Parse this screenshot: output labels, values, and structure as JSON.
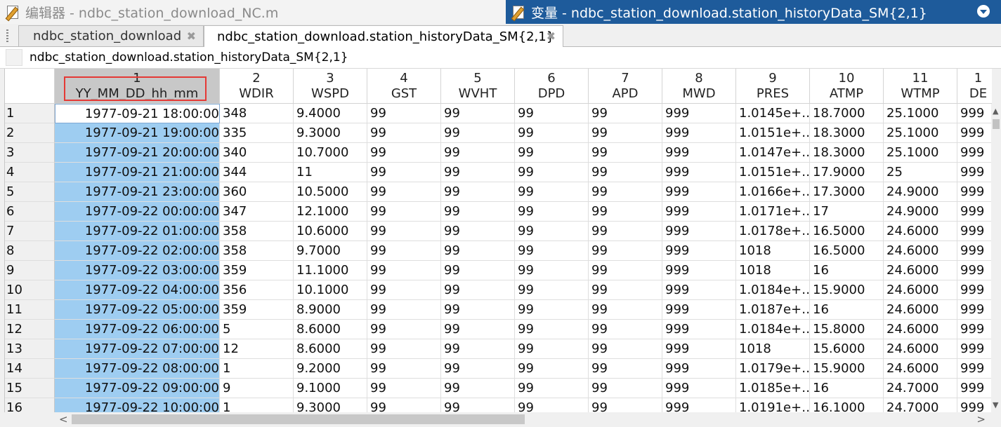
{
  "editor_window": {
    "title": "编辑器 - ndbc_station_download_NC.m"
  },
  "variable_window": {
    "title": "变量 - ndbc_station_download.station_historyData_SM{2,1}"
  },
  "tabs": [
    {
      "label": "ndbc_station_download",
      "close": "✖"
    },
    {
      "label": "ndbc_station_download.station_historyData_SM{2,1}",
      "close": "✖"
    }
  ],
  "path": {
    "text": "ndbc_station_download.station_historyData_SM{2,1}"
  },
  "columns": [
    {
      "num": "1",
      "name": "YY_MM_DD_hh_mm"
    },
    {
      "num": "2",
      "name": "WDIR"
    },
    {
      "num": "3",
      "name": "WSPD"
    },
    {
      "num": "4",
      "name": "GST"
    },
    {
      "num": "5",
      "name": "WVHT"
    },
    {
      "num": "6",
      "name": "DPD"
    },
    {
      "num": "7",
      "name": "APD"
    },
    {
      "num": "8",
      "name": "MWD"
    },
    {
      "num": "9",
      "name": "PRES"
    },
    {
      "num": "10",
      "name": "ATMP"
    },
    {
      "num": "11",
      "name": "WTMP"
    },
    {
      "num": "1",
      "name": "DE"
    }
  ],
  "rows": [
    [
      "1",
      "1977-09-21 18:00:00",
      "348",
      "9.4000",
      "99",
      "99",
      "99",
      "99",
      "999",
      "1.0145e+…",
      "18.7000",
      "25.1000",
      "999"
    ],
    [
      "2",
      "1977-09-21 19:00:00",
      "335",
      "9.3000",
      "99",
      "99",
      "99",
      "99",
      "999",
      "1.0151e+…",
      "18.3000",
      "25.1000",
      "999"
    ],
    [
      "3",
      "1977-09-21 20:00:00",
      "340",
      "10.7000",
      "99",
      "99",
      "99",
      "99",
      "999",
      "1.0147e+…",
      "18.3000",
      "25.1000",
      "999"
    ],
    [
      "4",
      "1977-09-21 21:00:00",
      "344",
      "11",
      "99",
      "99",
      "99",
      "99",
      "999",
      "1.0151e+…",
      "17.9000",
      "25",
      "999"
    ],
    [
      "5",
      "1977-09-21 23:00:00",
      "360",
      "10.5000",
      "99",
      "99",
      "99",
      "99",
      "999",
      "1.0166e+…",
      "17.3000",
      "24.9000",
      "999"
    ],
    [
      "6",
      "1977-09-22 00:00:00",
      "347",
      "12.1000",
      "99",
      "99",
      "99",
      "99",
      "999",
      "1.0171e+…",
      "17",
      "24.9000",
      "999"
    ],
    [
      "7",
      "1977-09-22 01:00:00",
      "358",
      "10.6000",
      "99",
      "99",
      "99",
      "99",
      "999",
      "1.0178e+…",
      "16.5000",
      "24.6000",
      "999"
    ],
    [
      "8",
      "1977-09-22 02:00:00",
      "358",
      "9.7000",
      "99",
      "99",
      "99",
      "99",
      "999",
      "1018",
      "16.5000",
      "24.6000",
      "999"
    ],
    [
      "9",
      "1977-09-22 03:00:00",
      "359",
      "11.1000",
      "99",
      "99",
      "99",
      "99",
      "999",
      "1018",
      "16",
      "24.6000",
      "999"
    ],
    [
      "10",
      "1977-09-22 04:00:00",
      "356",
      "10.1000",
      "99",
      "99",
      "99",
      "99",
      "999",
      "1.0184e+…",
      "15.9000",
      "24.6000",
      "999"
    ],
    [
      "11",
      "1977-09-22 05:00:00",
      "359",
      "8.9000",
      "99",
      "99",
      "99",
      "99",
      "999",
      "1.0187e+…",
      "16",
      "24.6000",
      "999"
    ],
    [
      "12",
      "1977-09-22 06:00:00",
      "5",
      "8.6000",
      "99",
      "99",
      "99",
      "99",
      "999",
      "1.0184e+…",
      "15.8000",
      "24.6000",
      "999"
    ],
    [
      "13",
      "1977-09-22 07:00:00",
      "12",
      "8.6000",
      "99",
      "99",
      "99",
      "99",
      "999",
      "1018",
      "15.6000",
      "24.6000",
      "999"
    ],
    [
      "14",
      "1977-09-22 08:00:00",
      "1",
      "9.2000",
      "99",
      "99",
      "99",
      "99",
      "999",
      "1.0179e+…",
      "15.9000",
      "24.6000",
      "999"
    ],
    [
      "15",
      "1977-09-22 09:00:00",
      "9",
      "9.1000",
      "99",
      "99",
      "99",
      "99",
      "999",
      "1.0185e+…",
      "16",
      "24.7000",
      "999"
    ],
    [
      "16",
      "1977-09-22 10:00:00",
      "1",
      "9.3000",
      "99",
      "99",
      "99",
      "99",
      "999",
      "1.0191e+…",
      "16.1000",
      "24.7000",
      "999"
    ]
  ],
  "colors": {
    "title_active_bg": "#1e5b9b",
    "selection_bg": "#9ecdf1",
    "highlight_box": "#e53935"
  },
  "icons": {
    "editor": "edit-document-icon",
    "variable": "variable-icon",
    "menu": "chevron-down-icon"
  }
}
